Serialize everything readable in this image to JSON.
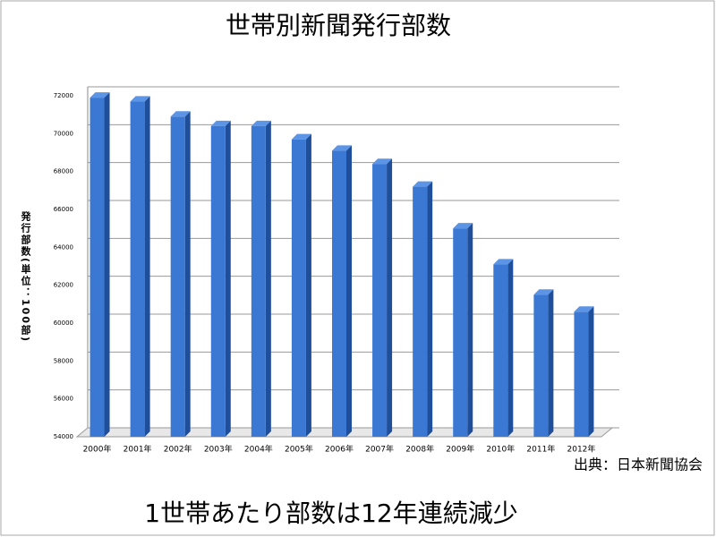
{
  "chart_data": {
    "type": "bar",
    "title": "世帯別新聞発行部数",
    "y_label": "発行部数(単位：100部)",
    "source": "出典：日本新聞協会",
    "caption": "1世帯あたり部数は12年連続減少",
    "categories": [
      "2000年",
      "2001年",
      "2002年",
      "2003年",
      "2004年",
      "2005年",
      "2006年",
      "2007年",
      "2008年",
      "2009年",
      "2010年",
      "2011年",
      "2012年"
    ],
    "values": [
      71900,
      71700,
      70900,
      70400,
      70400,
      69700,
      69100,
      68400,
      67200,
      65000,
      63100,
      61500,
      60600
    ],
    "color": "#3a78d4",
    "ylim": [
      54000,
      72000
    ],
    "yticks": [
      54000,
      56000,
      58000,
      60000,
      62000,
      64000,
      66000,
      68000,
      70000,
      72000
    ],
    "grid": true
  }
}
